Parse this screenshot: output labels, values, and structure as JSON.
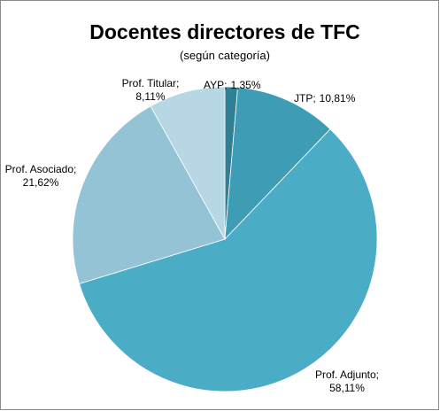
{
  "chart_data": {
    "type": "pie",
    "title": "Docentes directores de TFC",
    "subtitle": "(según categoría)",
    "categories": [
      "AYP;",
      "JTP;",
      "Prof. Adjunto;",
      "Prof. Asociado;",
      "Prof. Titular;"
    ],
    "values": [
      1.35,
      10.81,
      58.11,
      21.62,
      8.11
    ],
    "value_labels": [
      "1,35%",
      "10,81%",
      "58,11%",
      "21,62%",
      "8,11%"
    ],
    "colors": [
      "#2f7f95",
      "#3e9cb4",
      "#4bacc6",
      "#93c3d5",
      "#b8d7e4"
    ]
  }
}
